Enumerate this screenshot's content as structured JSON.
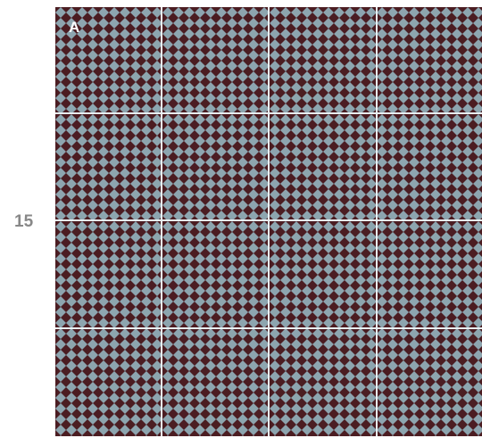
{
  "panel": {
    "label": "A",
    "colors": {
      "light_tile": "#8da5af",
      "dark_tile": "#4b1d22",
      "grid_line": "#e8f0f4"
    },
    "grid": {
      "rows": 4,
      "cols": 4
    }
  },
  "axis": {
    "label": "15"
  }
}
